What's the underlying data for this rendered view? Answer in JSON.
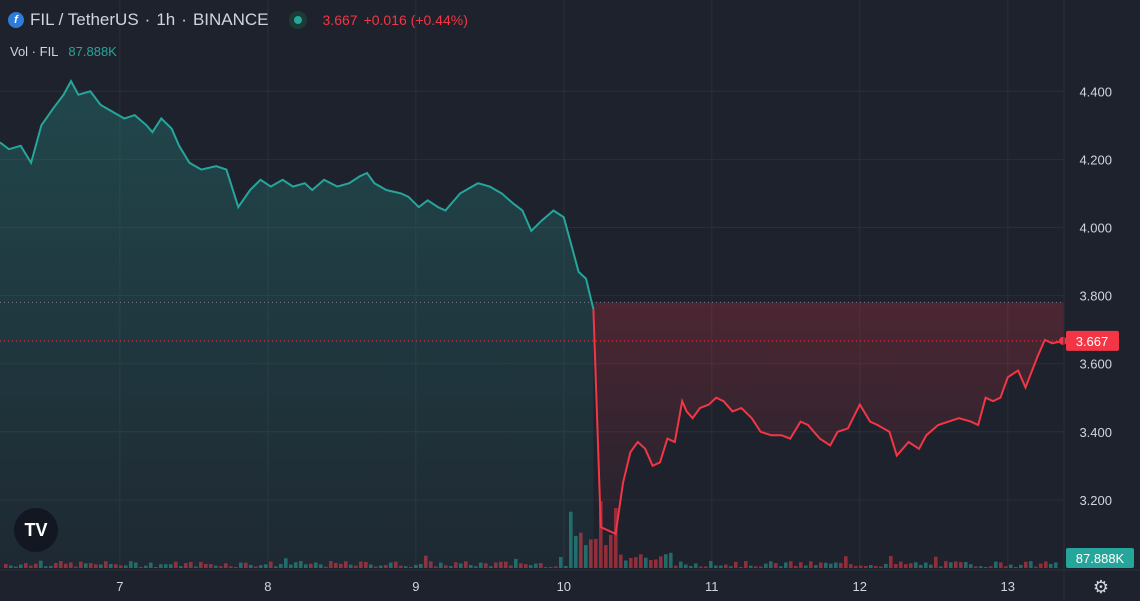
{
  "header": {
    "symbol": "FIL / TetherUS",
    "interval": "1h",
    "exchange": "BINANCE",
    "coin_glyph": "f",
    "price": "3.667",
    "change": "+0.016 (+0.44%)"
  },
  "volume": {
    "label": "Vol · FIL",
    "value": "87.888K"
  },
  "logo_text": "TV",
  "gear_glyph": "⚙",
  "colors": {
    "up": "#26a69a",
    "down": "#f23645",
    "bg": "#1e222d",
    "grid": "#2a2e39",
    "text": "#d1d4dc"
  },
  "chart_data": {
    "type": "area",
    "title": "FIL / TetherUS · 1h · BINANCE",
    "x_tick_labels": [
      "7",
      "8",
      "9",
      "10",
      "11",
      "12",
      "13"
    ],
    "x_ticks_day": [
      7,
      8,
      9,
      10,
      11,
      12,
      13
    ],
    "y_tick_labels": [
      "4.400",
      "4.200",
      "4.000",
      "3.800",
      "3.600",
      "3.400",
      "3.200"
    ],
    "y_ticks": [
      4.4,
      4.2,
      4.0,
      3.8,
      3.6,
      3.4,
      3.2
    ],
    "ylim": [
      3.0,
      4.58
    ],
    "xlim": [
      6.19,
      13.38
    ],
    "baseline": 3.78,
    "last_price": 3.667,
    "last_price_label": "3.667",
    "volume_label": "87.888K",
    "price_series": [
      [
        6.19,
        4.25
      ],
      [
        6.25,
        4.23
      ],
      [
        6.33,
        4.24
      ],
      [
        6.4,
        4.19
      ],
      [
        6.47,
        4.3
      ],
      [
        6.55,
        4.35
      ],
      [
        6.62,
        4.39
      ],
      [
        6.67,
        4.43
      ],
      [
        6.72,
        4.39
      ],
      [
        6.8,
        4.4
      ],
      [
        6.87,
        4.36
      ],
      [
        6.95,
        4.34
      ],
      [
        7.03,
        4.32
      ],
      [
        7.1,
        4.33
      ],
      [
        7.18,
        4.3
      ],
      [
        7.22,
        4.28
      ],
      [
        7.28,
        4.32
      ],
      [
        7.35,
        4.29
      ],
      [
        7.4,
        4.24
      ],
      [
        7.47,
        4.19
      ],
      [
        7.55,
        4.17
      ],
      [
        7.65,
        4.18
      ],
      [
        7.72,
        4.17
      ],
      [
        7.8,
        4.06
      ],
      [
        7.88,
        4.11
      ],
      [
        7.95,
        4.14
      ],
      [
        8.02,
        4.12
      ],
      [
        8.1,
        4.14
      ],
      [
        8.17,
        4.12
      ],
      [
        8.25,
        4.13
      ],
      [
        8.3,
        4.11
      ],
      [
        8.38,
        4.14
      ],
      [
        8.47,
        4.12
      ],
      [
        8.55,
        4.13
      ],
      [
        8.62,
        4.15
      ],
      [
        8.67,
        4.16
      ],
      [
        8.72,
        4.13
      ],
      [
        8.8,
        4.11
      ],
      [
        8.9,
        4.1
      ],
      [
        8.95,
        4.09
      ],
      [
        9.02,
        4.06
      ],
      [
        9.08,
        4.08
      ],
      [
        9.15,
        4.06
      ],
      [
        9.2,
        4.05
      ],
      [
        9.3,
        4.1
      ],
      [
        9.42,
        4.13
      ],
      [
        9.5,
        4.12
      ],
      [
        9.58,
        4.1
      ],
      [
        9.66,
        4.07
      ],
      [
        9.72,
        4.05
      ],
      [
        9.78,
        3.99
      ],
      [
        9.85,
        4.02
      ],
      [
        9.93,
        4.05
      ],
      [
        10.0,
        4.03
      ],
      [
        10.05,
        3.95
      ],
      [
        10.1,
        3.87
      ],
      [
        10.15,
        3.85
      ],
      [
        10.2,
        3.76
      ],
      [
        10.25,
        3.12
      ],
      [
        10.3,
        3.11
      ],
      [
        10.35,
        3.1
      ],
      [
        10.4,
        3.25
      ],
      [
        10.45,
        3.34
      ],
      [
        10.5,
        3.37
      ],
      [
        10.55,
        3.35
      ],
      [
        10.6,
        3.3
      ],
      [
        10.65,
        3.31
      ],
      [
        10.7,
        3.38
      ],
      [
        10.75,
        3.37
      ],
      [
        10.8,
        3.49
      ],
      [
        10.83,
        3.46
      ],
      [
        10.87,
        3.44
      ],
      [
        10.92,
        3.47
      ],
      [
        10.98,
        3.48
      ],
      [
        11.03,
        3.5
      ],
      [
        11.08,
        3.49
      ],
      [
        11.14,
        3.46
      ],
      [
        11.2,
        3.47
      ],
      [
        11.27,
        3.44
      ],
      [
        11.33,
        3.4
      ],
      [
        11.4,
        3.39
      ],
      [
        11.47,
        3.39
      ],
      [
        11.53,
        3.38
      ],
      [
        11.6,
        3.43
      ],
      [
        11.65,
        3.42
      ],
      [
        11.73,
        3.38
      ],
      [
        11.8,
        3.36
      ],
      [
        11.85,
        3.4
      ],
      [
        11.92,
        3.41
      ],
      [
        12.0,
        3.48
      ],
      [
        12.07,
        3.43
      ],
      [
        12.12,
        3.42
      ],
      [
        12.2,
        3.4
      ],
      [
        12.25,
        3.33
      ],
      [
        12.33,
        3.37
      ],
      [
        12.4,
        3.35
      ],
      [
        12.45,
        3.39
      ],
      [
        12.53,
        3.42
      ],
      [
        12.6,
        3.43
      ],
      [
        12.67,
        3.44
      ],
      [
        12.75,
        3.43
      ],
      [
        12.8,
        3.42
      ],
      [
        12.85,
        3.5
      ],
      [
        12.9,
        3.49
      ],
      [
        12.95,
        3.5
      ],
      [
        13.0,
        3.56
      ],
      [
        13.07,
        3.58
      ],
      [
        13.12,
        3.53
      ],
      [
        13.2,
        3.62
      ],
      [
        13.25,
        3.67
      ],
      [
        13.3,
        3.66
      ],
      [
        13.35,
        3.665
      ],
      [
        13.38,
        3.667
      ]
    ]
  }
}
